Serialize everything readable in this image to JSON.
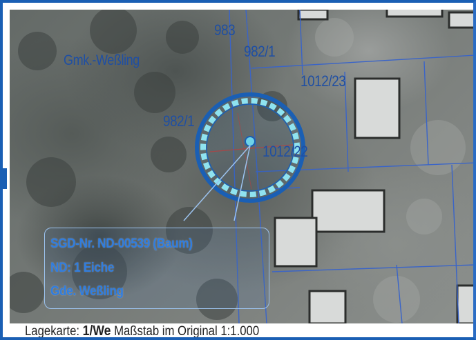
{
  "map": {
    "municipality_label": "Gmk.-Weßling",
    "parcels": {
      "p983": "983",
      "p982_1_top": "982/1",
      "p1012_23": "1012/23",
      "p982_1_left": "982/1",
      "p1012_22": "1012/22"
    },
    "colors": {
      "label_blue": "#1f4fa3",
      "circle_blue": "#1a5fb4",
      "dash_cyan": "#8fe3f0",
      "info_blue": "#2f7de0",
      "frame_blue": "#1a5fb4"
    },
    "marker_icon": "tree-location-marker-icon"
  },
  "info_box": {
    "line1": "SGD-Nr. ND-00539 (Baum)",
    "line2": "ND: 1 Eiche",
    "line3": "Gde. Weßling"
  },
  "footer": {
    "prefix": "Lagekarte:",
    "map_id": "1/We",
    "scale_label": "Maßstab im Original",
    "scale_value": "1:1.000"
  }
}
